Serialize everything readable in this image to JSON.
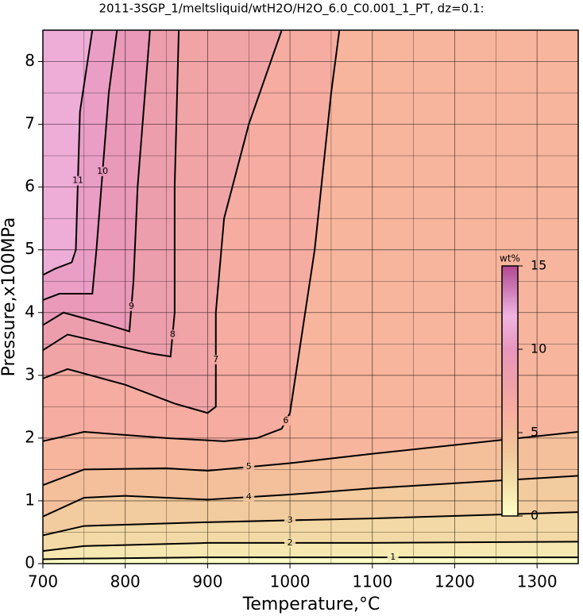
{
  "chart_data": {
    "type": "contour",
    "title": "2011-3SGP_1/meltsliquid/wtH2O/H2O_6.0_C0.001_1_PT, dz=0.1:",
    "x_label": "Temperature,°C",
    "y_label": "Pressure,x100MPa",
    "xlim": [
      700,
      1350
    ],
    "ylim": [
      0,
      8.5
    ],
    "xticks": [
      700,
      800,
      900,
      1000,
      1100,
      1200,
      1300
    ],
    "xminorticks": [
      750,
      850,
      950,
      1050,
      1150,
      1250,
      1350
    ],
    "yticks": [
      0,
      1,
      2,
      3,
      4,
      5,
      6,
      7,
      8
    ],
    "yminorticks": [
      0.5,
      1.5,
      2.5,
      3.5,
      4.5,
      5.5,
      6.5,
      7.5
    ],
    "grid": true,
    "colormap": [
      {
        "value": 0,
        "color": "#ffffc8"
      },
      {
        "value": 2,
        "color": "#f3e0a8"
      },
      {
        "value": 4,
        "color": "#f2c49a"
      },
      {
        "value": 6,
        "color": "#f8b09e"
      },
      {
        "value": 8,
        "color": "#eea0a8"
      },
      {
        "value": 10,
        "color": "#e896bd"
      },
      {
        "value": 12,
        "color": "#f0b4e0"
      },
      {
        "value": 15,
        "color": "#b04890"
      }
    ],
    "colorbar": {
      "label": "wt%",
      "lim": [
        0,
        15
      ],
      "ticks": [
        0,
        5,
        10,
        15
      ]
    },
    "series": [
      {
        "name": "1",
        "x": [
          700,
          750,
          900,
          1350
        ],
        "y": [
          0.07,
          0.08,
          0.1,
          0.1
        ]
      },
      {
        "name": "2",
        "x": [
          700,
          750,
          900,
          1100,
          1350
        ],
        "y": [
          0.2,
          0.28,
          0.33,
          0.33,
          0.35
        ]
      },
      {
        "name": "3",
        "x": [
          700,
          750,
          800,
          900,
          1100,
          1350
        ],
        "y": [
          0.45,
          0.6,
          0.62,
          0.66,
          0.72,
          0.82
        ]
      },
      {
        "name": "4",
        "x": [
          700,
          750,
          800,
          900,
          1000,
          1100,
          1350
        ],
        "y": [
          0.75,
          1.05,
          1.08,
          1.02,
          1.1,
          1.2,
          1.4
        ]
      },
      {
        "name": "5",
        "x": [
          700,
          750,
          850,
          900,
          1000,
          1100,
          1350
        ],
        "y": [
          1.25,
          1.5,
          1.52,
          1.48,
          1.6,
          1.75,
          2.1
        ]
      },
      {
        "name": "6",
        "x": [
          700,
          750,
          850,
          920,
          960,
          990,
          1000,
          1030,
          1050,
          1060
        ],
        "y": [
          1.95,
          2.1,
          2.0,
          1.95,
          2.0,
          2.15,
          2.4,
          5.0,
          7.5,
          8.5
        ]
      },
      {
        "name": "7",
        "x": [
          700,
          730,
          800,
          860,
          900,
          910,
          910,
          920,
          950,
          990
        ],
        "y": [
          2.95,
          3.1,
          2.85,
          2.55,
          2.4,
          2.5,
          4.0,
          5.5,
          7.0,
          8.5
        ]
      },
      {
        "name": "8",
        "x": [
          700,
          730,
          780,
          830,
          855,
          860,
          860,
          865
        ],
        "y": [
          3.4,
          3.65,
          3.5,
          3.35,
          3.3,
          4.0,
          6.0,
          8.5
        ]
      },
      {
        "name": "9",
        "x": [
          700,
          725,
          780,
          805,
          810,
          815,
          830
        ],
        "y": [
          3.8,
          4.0,
          3.8,
          3.7,
          4.5,
          6.0,
          8.5
        ]
      },
      {
        "name": "10",
        "x": [
          700,
          720,
          760,
          765,
          780,
          790
        ],
        "y": [
          4.2,
          4.3,
          4.3,
          5.0,
          7.5,
          8.5
        ]
      },
      {
        "name": "11",
        "x": [
          700,
          715,
          735,
          740,
          745,
          760
        ],
        "y": [
          4.6,
          4.7,
          4.8,
          5.0,
          7.2,
          8.5
        ]
      }
    ]
  }
}
